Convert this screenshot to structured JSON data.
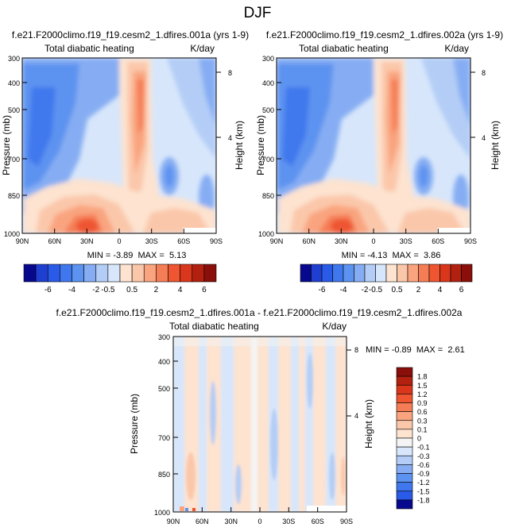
{
  "figure": {
    "title": "DJF"
  },
  "panels": [
    {
      "id": "p1",
      "title": "f.e21.F2000climo.f19_f19.cesm2_1.dfires.001a (yrs 1-9)",
      "subtitle_left": "Total diabatic heating",
      "subtitle_right": "K/day",
      "stats": "MIN = -3.89  MAX =  5.13",
      "ylabel": "Pressure (mb)",
      "ylabel_right": "Height (km)",
      "yticks": [
        "300",
        "400",
        "500",
        "700",
        "850",
        "1000"
      ],
      "xticks": [
        "90N",
        "60N",
        "30N",
        "0",
        "30S",
        "60S",
        "90S"
      ],
      "height_ticks": [
        "8",
        "4"
      ]
    },
    {
      "id": "p2",
      "title": "f.e21.F2000climo.f19_f19.cesm2_1.dfires.002a (yrs 1-9)",
      "subtitle_left": "Total diabatic heating",
      "subtitle_right": "K/day",
      "stats": "MIN = -4.13  MAX =  3.86",
      "ylabel": "Pressure (mb)",
      "ylabel_right": "Height (km)",
      "yticks": [
        "300",
        "400",
        "500",
        "700",
        "850",
        "1000"
      ],
      "xticks": [
        "90N",
        "60N",
        "30N",
        "0",
        "30S",
        "60S",
        "90S"
      ],
      "height_ticks": [
        "8",
        "4"
      ]
    },
    {
      "id": "p3",
      "title": "f.e21.F2000climo.f19_f19.cesm2_1.dfires.001a - f.e21.F2000climo.f19_f19.cesm2_1.dfires.002a",
      "subtitle_left": "Total diabatic heating",
      "subtitle_right": "K/day",
      "stats": "MIN = -0.89  MAX =  2.61",
      "ylabel": "Pressure (mb)",
      "ylabel_right": "Height (km)",
      "yticks": [
        "300",
        "400",
        "500",
        "700",
        "850",
        "1000"
      ],
      "xticks": [
        "90N",
        "60N",
        "30N",
        "0",
        "30S",
        "60S",
        "90S"
      ],
      "height_ticks": [
        "8",
        "4"
      ]
    }
  ],
  "colorbars": {
    "top": {
      "labels": [
        "-6",
        "-4",
        "-2",
        "-0.5",
        "0.5",
        "2",
        "4",
        "6"
      ],
      "colors": [
        "#08088f",
        "#1f3fd1",
        "#2a5ae8",
        "#3f78ee",
        "#5d93f0",
        "#86adf3",
        "#b3cdf6",
        "#d7e6fb",
        "#fde3d0",
        "#fbc7aa",
        "#f9a47f",
        "#f57d55",
        "#ee5530",
        "#d9361b",
        "#b2200f",
        "#8a0f0a"
      ]
    },
    "bottom": {
      "labels": [
        "1.8",
        "1.5",
        "1.2",
        "0.9",
        "0.6",
        "0.3",
        "0.1",
        "0",
        "-0.1",
        "-0.3",
        "-0.6",
        "-0.9",
        "-1.2",
        "-1.5",
        "-1.8"
      ],
      "colors": [
        "#8a0f0a",
        "#b2200f",
        "#d9361b",
        "#ee5530",
        "#f57d55",
        "#f9a47f",
        "#fbc7aa",
        "#fde3d0",
        "#f4f4f4",
        "#d7e6fb",
        "#b3cdf6",
        "#86adf3",
        "#5d93f0",
        "#3f78ee",
        "#2a5ae8",
        "#08088f"
      ]
    }
  },
  "chart_data": [
    {
      "type": "heatmap",
      "title": "f.e21.F2000climo.f19_f19.cesm2_1.dfires.001a (yrs 1-9)",
      "variable": "Total diabatic heating",
      "units": "K/day",
      "xlabel": "",
      "ylabel": "Pressure (mb)",
      "y2label": "Height (km)",
      "x_ticks": [
        "90N",
        "60N",
        "30N",
        "0",
        "30S",
        "60S",
        "90S"
      ],
      "y_ticks": [
        300,
        400,
        500,
        700,
        850,
        1000
      ],
      "y_scale": "log",
      "y_reversed": true,
      "min": -3.89,
      "max": 5.13,
      "pattern": "negative (cooling) across high latitudes and aloft; strong positive heating column near 0–15N extending to 300 mb; peak positive heating near the surface around 30–60N"
    },
    {
      "type": "heatmap",
      "title": "f.e21.F2000climo.f19_f19.cesm2_1.dfires.002a (yrs 1-9)",
      "variable": "Total diabatic heating",
      "units": "K/day",
      "xlabel": "",
      "ylabel": "Pressure (mb)",
      "y2label": "Height (km)",
      "x_ticks": [
        "90N",
        "60N",
        "30N",
        "0",
        "30S",
        "60S",
        "90S"
      ],
      "y_ticks": [
        300,
        400,
        500,
        700,
        850,
        1000
      ],
      "y_scale": "log",
      "y_reversed": true,
      "min": -4.13,
      "max": 3.86,
      "pattern": "nearly identical to 001a"
    },
    {
      "type": "heatmap",
      "title": "f.e21.F2000climo.f19_f19.cesm2_1.dfires.001a - f.e21.F2000climo.f19_f19.cesm2_1.dfires.002a",
      "variable": "Total diabatic heating",
      "units": "K/day",
      "xlabel": "",
      "ylabel": "Pressure (mb)",
      "y2label": "Height (km)",
      "x_ticks": [
        "90N",
        "60N",
        "30N",
        "0",
        "30S",
        "60S",
        "90S"
      ],
      "y_ticks": [
        300,
        400,
        500,
        700,
        850,
        1000
      ],
      "y_scale": "log",
      "y_reversed": true,
      "min": -0.89,
      "max": 2.61,
      "pattern": "small differences mostly within ±0.1, vertical banding; small positive values near surface at 60N"
    }
  ]
}
